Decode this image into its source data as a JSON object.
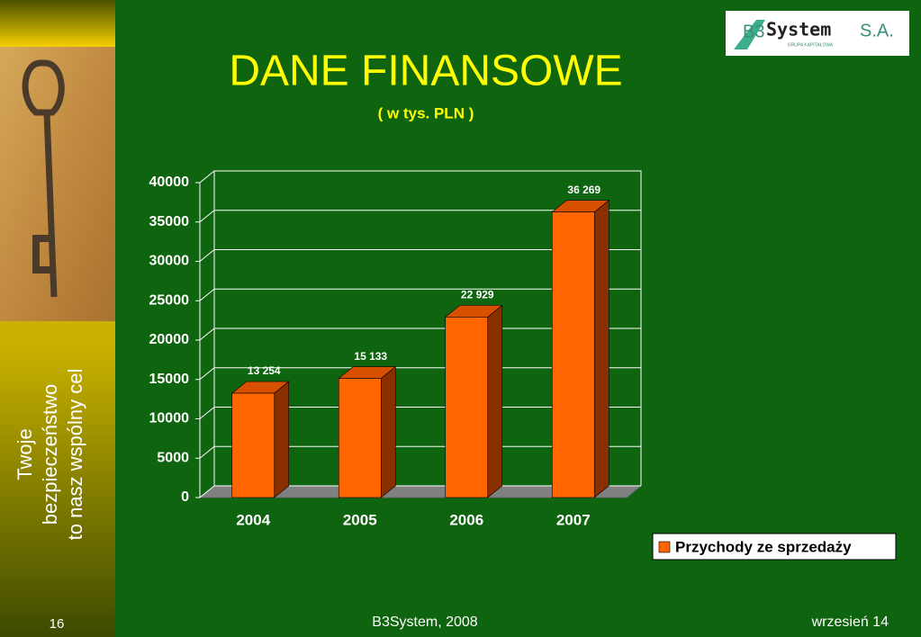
{
  "slide": {
    "tagline": [
      "Twoje",
      "bezpieczeństwo",
      "to nasz wspólny cel"
    ],
    "page_number": "16",
    "footer_center": "B3System, 2008",
    "footer_right": "wrzesień 14",
    "logo": {
      "prefix": "B3",
      "name": "System",
      "suffix": "S.A.",
      "tagline": "GRUPA KAPITAŁOWA"
    }
  },
  "chart_data": {
    "type": "bar3d",
    "title": "DANE FINANSOWE",
    "subtitle": "( w tys. PLN )",
    "categories": [
      "2004",
      "2005",
      "2006",
      "2007"
    ],
    "series": [
      {
        "name": "Przychody ze sprzedaży",
        "color": "#ff6600",
        "values": [
          13254,
          15133,
          22929,
          36269
        ],
        "value_labels": [
          "13 254",
          "15 133",
          "22 929",
          "36 269"
        ]
      }
    ],
    "ylim": [
      0,
      40000
    ],
    "yticks": [
      0,
      5000,
      10000,
      15000,
      20000,
      25000,
      30000,
      35000,
      40000
    ],
    "grid": true,
    "legend": "bottom-right"
  }
}
